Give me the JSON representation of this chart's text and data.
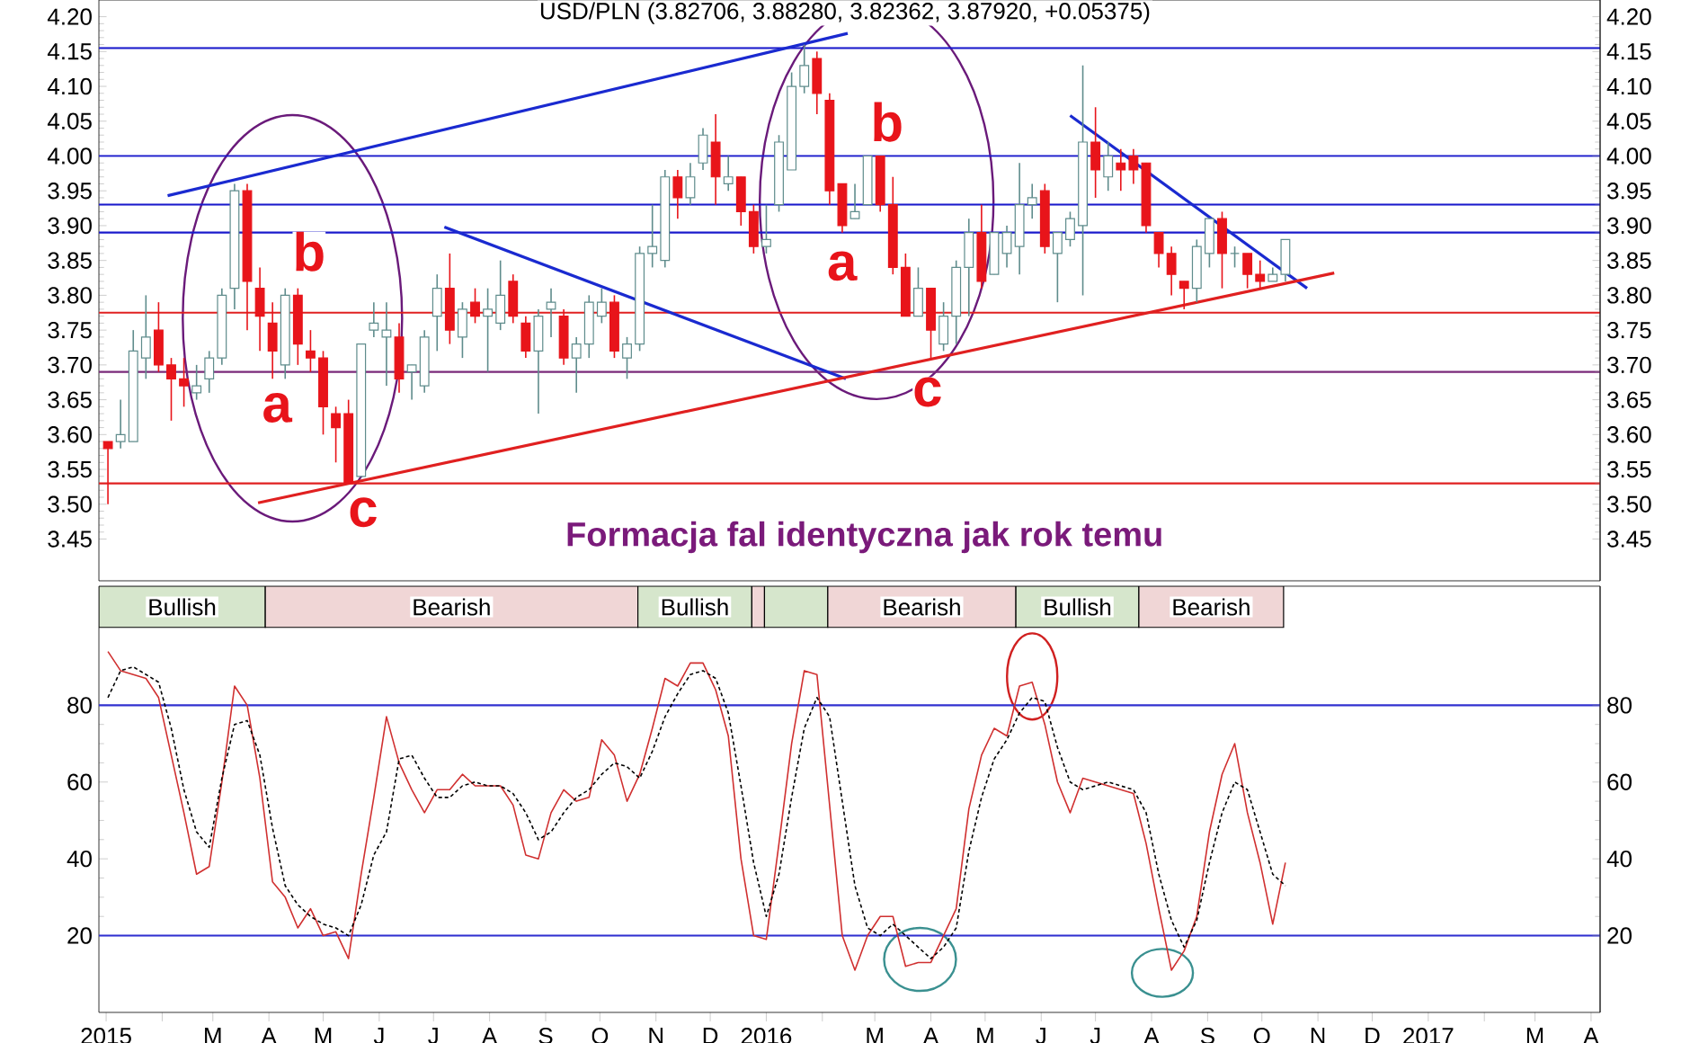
{
  "chart_data": [
    {
      "type": "candlestick",
      "title": "USD/PLN (3.82706, 3.88280, 3.82362, 3.87920, +0.05375)",
      "x": [
        "2015-01-02",
        "2015-01-09",
        "2015-01-16",
        "2015-01-23",
        "2015-01-30",
        "2015-02-06",
        "2015-02-13",
        "2015-02-20",
        "2015-02-27",
        "2015-03-06",
        "2015-03-13",
        "2015-03-20",
        "2015-03-27",
        "2015-04-03",
        "2015-04-10",
        "2015-04-17",
        "2015-04-24",
        "2015-05-01",
        "2015-05-08",
        "2015-05-15",
        "2015-05-22",
        "2015-05-29",
        "2015-06-05",
        "2015-06-12",
        "2015-06-19",
        "2015-06-26",
        "2015-07-03",
        "2015-07-10",
        "2015-07-17",
        "2015-07-24",
        "2015-07-31",
        "2015-08-07",
        "2015-08-14",
        "2015-08-21",
        "2015-08-28",
        "2015-09-04",
        "2015-09-11",
        "2015-09-18",
        "2015-09-25",
        "2015-10-02",
        "2015-10-09",
        "2015-10-16",
        "2015-10-23",
        "2015-10-30",
        "2015-11-06",
        "2015-11-13",
        "2015-11-20",
        "2015-11-27",
        "2015-12-04",
        "2015-12-11",
        "2015-12-18",
        "2015-12-25",
        "2016-01-01",
        "2016-01-08",
        "2016-01-15",
        "2016-01-22",
        "2016-01-29",
        "2016-02-05",
        "2016-02-12",
        "2016-02-19",
        "2016-02-26",
        "2016-03-04",
        "2016-03-11",
        "2016-03-18",
        "2016-03-25",
        "2016-04-01",
        "2016-04-08",
        "2016-04-15",
        "2016-04-22",
        "2016-04-29",
        "2016-05-06",
        "2016-05-13",
        "2016-05-20",
        "2016-05-27",
        "2016-06-03",
        "2016-06-10",
        "2016-06-17",
        "2016-06-24",
        "2016-07-01",
        "2016-07-08",
        "2016-07-15",
        "2016-07-22",
        "2016-07-29",
        "2016-08-05",
        "2016-08-12",
        "2016-08-19",
        "2016-08-26",
        "2016-09-02",
        "2016-09-09",
        "2016-09-16",
        "2016-09-23",
        "2016-09-30",
        "2016-10-07",
        "2016-10-14"
      ],
      "ohlc": [
        [
          3.59,
          3.59,
          3.5,
          3.58
        ],
        [
          3.59,
          3.65,
          3.58,
          3.6
        ],
        [
          3.59,
          3.75,
          3.59,
          3.72
        ],
        [
          3.71,
          3.8,
          3.68,
          3.74
        ],
        [
          3.75,
          3.79,
          3.69,
          3.7
        ],
        [
          3.7,
          3.71,
          3.62,
          3.68
        ],
        [
          3.68,
          3.71,
          3.64,
          3.67
        ],
        [
          3.66,
          3.7,
          3.65,
          3.67
        ],
        [
          3.68,
          3.72,
          3.66,
          3.71
        ],
        [
          3.71,
          3.81,
          3.7,
          3.8
        ],
        [
          3.81,
          3.96,
          3.78,
          3.95
        ],
        [
          3.95,
          3.96,
          3.75,
          3.82
        ],
        [
          3.81,
          3.84,
          3.72,
          3.77
        ],
        [
          3.76,
          3.79,
          3.68,
          3.72
        ],
        [
          3.7,
          3.81,
          3.68,
          3.8
        ],
        [
          3.8,
          3.81,
          3.7,
          3.73
        ],
        [
          3.72,
          3.75,
          3.69,
          3.71
        ],
        [
          3.71,
          3.72,
          3.6,
          3.64
        ],
        [
          3.63,
          3.64,
          3.56,
          3.61
        ],
        [
          3.63,
          3.65,
          3.53,
          3.53
        ],
        [
          3.54,
          3.73,
          3.54,
          3.73
        ],
        [
          3.75,
          3.79,
          3.74,
          3.76
        ],
        [
          3.74,
          3.79,
          3.67,
          3.75
        ],
        [
          3.74,
          3.76,
          3.66,
          3.68
        ],
        [
          3.69,
          3.7,
          3.65,
          3.7
        ],
        [
          3.67,
          3.75,
          3.66,
          3.74
        ],
        [
          3.77,
          3.83,
          3.72,
          3.81
        ],
        [
          3.81,
          3.86,
          3.73,
          3.75
        ],
        [
          3.74,
          3.79,
          3.71,
          3.78
        ],
        [
          3.79,
          3.81,
          3.76,
          3.77
        ],
        [
          3.77,
          3.81,
          3.69,
          3.78
        ],
        [
          3.76,
          3.85,
          3.75,
          3.8
        ],
        [
          3.82,
          3.83,
          3.76,
          3.77
        ],
        [
          3.76,
          3.77,
          3.71,
          3.72
        ],
        [
          3.72,
          3.78,
          3.63,
          3.77
        ],
        [
          3.78,
          3.81,
          3.74,
          3.79
        ],
        [
          3.77,
          3.78,
          3.7,
          3.71
        ],
        [
          3.71,
          3.74,
          3.66,
          3.73
        ],
        [
          3.73,
          3.8,
          3.71,
          3.79
        ],
        [
          3.77,
          3.81,
          3.76,
          3.79
        ],
        [
          3.79,
          3.8,
          3.71,
          3.72
        ],
        [
          3.71,
          3.74,
          3.68,
          3.73
        ],
        [
          3.73,
          3.87,
          3.72,
          3.86
        ],
        [
          3.86,
          3.93,
          3.84,
          3.87
        ],
        [
          3.85,
          3.98,
          3.84,
          3.97
        ],
        [
          3.97,
          3.98,
          3.91,
          3.94
        ],
        [
          3.94,
          3.99,
          3.93,
          3.97
        ],
        [
          3.99,
          4.04,
          3.98,
          4.03
        ],
        [
          4.02,
          4.06,
          3.93,
          3.97
        ],
        [
          3.96,
          4.0,
          3.95,
          3.97
        ],
        [
          3.97,
          3.97,
          3.9,
          3.92
        ],
        [
          3.92,
          3.93,
          3.86,
          3.87
        ],
        [
          3.87,
          3.93,
          3.86,
          3.88
        ],
        [
          3.93,
          4.03,
          3.92,
          4.02
        ],
        [
          3.98,
          4.12,
          3.98,
          4.1
        ],
        [
          4.1,
          4.16,
          4.09,
          4.13
        ],
        [
          4.14,
          4.15,
          4.06,
          4.09
        ],
        [
          4.08,
          4.09,
          3.93,
          3.95
        ],
        [
          3.96,
          3.96,
          3.89,
          3.9
        ],
        [
          3.91,
          3.96,
          3.91,
          3.92
        ],
        [
          3.93,
          4.0,
          3.93,
          4.0
        ],
        [
          4.0,
          4.0,
          3.92,
          3.93
        ],
        [
          3.93,
          3.97,
          3.83,
          3.84
        ],
        [
          3.84,
          3.86,
          3.77,
          3.77
        ],
        [
          3.77,
          3.84,
          3.77,
          3.81
        ],
        [
          3.81,
          3.81,
          3.71,
          3.75
        ],
        [
          3.73,
          3.79,
          3.72,
          3.77
        ],
        [
          3.77,
          3.85,
          3.73,
          3.84
        ],
        [
          3.84,
          3.91,
          3.77,
          3.89
        ],
        [
          3.89,
          3.93,
          3.81,
          3.82
        ],
        [
          3.83,
          3.89,
          3.83,
          3.89
        ],
        [
          3.86,
          3.9,
          3.84,
          3.89
        ],
        [
          3.87,
          3.99,
          3.83,
          3.93
        ],
        [
          3.93,
          3.96,
          3.91,
          3.94
        ],
        [
          3.95,
          3.96,
          3.86,
          3.87
        ],
        [
          3.86,
          3.89,
          3.79,
          3.89
        ],
        [
          3.88,
          3.92,
          3.87,
          3.91
        ],
        [
          3.9,
          4.13,
          3.8,
          4.02
        ],
        [
          4.02,
          4.07,
          3.94,
          3.98
        ],
        [
          3.97,
          4.02,
          3.95,
          4.0
        ],
        [
          3.99,
          4.01,
          3.95,
          3.98
        ],
        [
          4.0,
          4.01,
          3.96,
          3.98
        ],
        [
          3.99,
          3.99,
          3.89,
          3.9
        ],
        [
          3.89,
          3.89,
          3.84,
          3.86
        ],
        [
          3.86,
          3.87,
          3.8,
          3.83
        ],
        [
          3.82,
          3.82,
          3.78,
          3.81
        ],
        [
          3.81,
          3.88,
          3.79,
          3.87
        ],
        [
          3.86,
          3.91,
          3.84,
          3.91
        ],
        [
          3.91,
          3.92,
          3.81,
          3.86
        ],
        [
          3.86,
          3.87,
          3.84,
          3.86
        ],
        [
          3.86,
          3.86,
          3.81,
          3.83
        ],
        [
          3.83,
          3.85,
          3.81,
          3.82
        ],
        [
          3.82,
          3.84,
          3.82,
          3.83
        ],
        [
          3.83,
          3.88,
          3.82,
          3.88
        ]
      ],
      "xlim": [
        "2014-12-28",
        "2017-04-06"
      ],
      "ylim": [
        3.39,
        4.224
      ],
      "yticks": [
        {
          "value": 3.45,
          "label": "3.45"
        },
        {
          "value": 3.5,
          "label": "3.50"
        },
        {
          "value": 3.55,
          "label": "3.55"
        },
        {
          "value": 3.6,
          "label": "3.60"
        },
        {
          "value": 3.65,
          "label": "3.65"
        },
        {
          "value": 3.7,
          "label": "3.70"
        },
        {
          "value": 3.75,
          "label": "3.75"
        },
        {
          "value": 3.8,
          "label": "3.80"
        },
        {
          "value": 3.85,
          "label": "3.85"
        },
        {
          "value": 3.9,
          "label": "3.90"
        },
        {
          "value": 3.95,
          "label": "3.95"
        },
        {
          "value": 4.0,
          "label": "4.00"
        },
        {
          "value": 4.05,
          "label": "4.05"
        },
        {
          "value": 4.1,
          "label": "4.10"
        },
        {
          "value": 4.15,
          "label": "4.15"
        },
        {
          "value": 4.2,
          "label": "4.20"
        }
      ],
      "y2lim": [
        3.39,
        4.224
      ],
      "y2ticks": [
        {
          "value": 3.45,
          "label": "3.45"
        },
        {
          "value": 3.5,
          "label": "3.50"
        },
        {
          "value": 3.55,
          "label": "3.55"
        },
        {
          "value": 3.6,
          "label": "3.60"
        },
        {
          "value": 3.65,
          "label": "3.65"
        },
        {
          "value": 3.7,
          "label": "3.70"
        },
        {
          "value": 3.75,
          "label": "3.75"
        },
        {
          "value": 3.8,
          "label": "3.80"
        },
        {
          "value": 3.85,
          "label": "3.85"
        },
        {
          "value": 3.9,
          "label": "3.90"
        },
        {
          "value": 3.95,
          "label": "3.95"
        },
        {
          "value": 4.0,
          "label": "4.00"
        },
        {
          "value": 4.05,
          "label": "4.05"
        },
        {
          "value": 4.1,
          "label": "4.10"
        },
        {
          "value": 4.15,
          "label": "4.15"
        },
        {
          "value": 4.2,
          "label": "4.20"
        }
      ],
      "tick_labels": "y",
      "ref_lines": [
        {
          "axis": "y",
          "value": 4.155,
          "color": "#1a1acc"
        },
        {
          "axis": "y",
          "value": 4.0,
          "color": "#1a1acc"
        },
        {
          "axis": "y",
          "value": 3.93,
          "color": "#1a1acc"
        },
        {
          "axis": "y",
          "value": 3.89,
          "color": "#1a1acc"
        },
        {
          "axis": "y",
          "value": 3.775,
          "color": "#e02020"
        },
        {
          "axis": "y",
          "value": 3.69,
          "color": "#7a2a7a"
        },
        {
          "axis": "y",
          "value": 3.53,
          "color": "#e02020"
        }
      ],
      "series": [
        {
          "type": "line",
          "color": "#1a2ad0",
          "x": [
            "2015-02-04",
            "2016-02-15"
          ],
          "values": [
            3.943,
            4.176
          ]
        },
        {
          "type": "line",
          "color": "#1a2ad0",
          "x": [
            "2015-07-07",
            "2016-02-14"
          ],
          "values": [
            3.898,
            3.68
          ]
        },
        {
          "type": "line",
          "color": "#1a2ad0",
          "x": [
            "2016-06-17",
            "2016-10-26"
          ],
          "values": [
            4.058,
            3.81
          ]
        },
        {
          "type": "line",
          "color": "#e02020",
          "x": [
            "2015-03-26",
            "2016-11-10"
          ],
          "values": [
            3.502,
            3.832
          ]
        }
      ],
      "annotations": [
        "a",
        "b",
        "c",
        "a",
        "b",
        "c",
        "Formacja fal identyczna jak rok temu"
      ]
    },
    {
      "type": "line",
      "bands": [
        {
          "axis": "x",
          "from": "2014-12-28",
          "to": "2015-03-30",
          "label": "Bullish",
          "color": "#d6e6cc"
        },
        {
          "axis": "x",
          "from": "2015-03-30",
          "to": "2015-10-22",
          "label": "Bearish",
          "color": "#f0d6d6"
        },
        {
          "axis": "x",
          "from": "2015-10-22",
          "to": "2015-12-24",
          "label": "Bullish",
          "color": "#d6e6cc"
        },
        {
          "axis": "x",
          "from": "2015-12-24",
          "to": "2015-12-31",
          "color": "#f0d6d6"
        },
        {
          "axis": "x",
          "from": "2015-12-31",
          "to": "2016-02-04",
          "color": "#d6e6cc"
        },
        {
          "axis": "x",
          "from": "2016-02-04",
          "to": "2016-05-18",
          "label": "Bearish",
          "color": "#f0d6d6"
        },
        {
          "axis": "x",
          "from": "2016-05-18",
          "to": "2016-07-25",
          "label": "Bullish",
          "color": "#d6e6cc"
        },
        {
          "axis": "x",
          "from": "2016-07-25",
          "to": "2016-10-13",
          "label": "Bearish",
          "color": "#f0d6d6"
        }
      ],
      "x": [
        "2015-01-02",
        "2015-01-09",
        "2015-01-16",
        "2015-01-23",
        "2015-01-30",
        "2015-02-06",
        "2015-02-13",
        "2015-02-20",
        "2015-02-27",
        "2015-03-06",
        "2015-03-13",
        "2015-03-20",
        "2015-03-27",
        "2015-04-03",
        "2015-04-10",
        "2015-04-17",
        "2015-04-24",
        "2015-05-01",
        "2015-05-08",
        "2015-05-15",
        "2015-05-22",
        "2015-05-29",
        "2015-06-05",
        "2015-06-12",
        "2015-06-19",
        "2015-06-26",
        "2015-07-03",
        "2015-07-10",
        "2015-07-17",
        "2015-07-24",
        "2015-07-31",
        "2015-08-07",
        "2015-08-14",
        "2015-08-21",
        "2015-08-28",
        "2015-09-04",
        "2015-09-11",
        "2015-09-18",
        "2015-09-25",
        "2015-10-02",
        "2015-10-09",
        "2015-10-16",
        "2015-10-23",
        "2015-10-30",
        "2015-11-06",
        "2015-11-13",
        "2015-11-20",
        "2015-11-27",
        "2015-12-04",
        "2015-12-11",
        "2015-12-18",
        "2015-12-25",
        "2016-01-01",
        "2016-01-08",
        "2016-01-15",
        "2016-01-22",
        "2016-01-29",
        "2016-02-05",
        "2016-02-12",
        "2016-02-19",
        "2016-02-26",
        "2016-03-04",
        "2016-03-11",
        "2016-03-18",
        "2016-03-25",
        "2016-04-01",
        "2016-04-08",
        "2016-04-15",
        "2016-04-22",
        "2016-04-29",
        "2016-05-06",
        "2016-05-13",
        "2016-05-20",
        "2016-05-27",
        "2016-06-03",
        "2016-06-10",
        "2016-06-17",
        "2016-06-24",
        "2016-07-01",
        "2016-07-08",
        "2016-07-15",
        "2016-07-22",
        "2016-07-29",
        "2016-08-05",
        "2016-08-12",
        "2016-08-19",
        "2016-08-26",
        "2016-09-02",
        "2016-09-09",
        "2016-09-16",
        "2016-09-23",
        "2016-09-30",
        "2016-10-07",
        "2016-10-14"
      ],
      "xlim": [
        "2014-12-28",
        "2017-04-06"
      ],
      "ylim": [
        0,
        111
      ],
      "yticks": [
        20,
        40,
        60,
        80
      ],
      "y2lim": [
        0,
        111
      ],
      "y2ticks": [
        20,
        40,
        60,
        80
      ],
      "xticks": [
        {
          "value": "2015-01-01",
          "label": "2015"
        },
        {
          "value": "2015-02-01",
          "label": null
        },
        {
          "value": "2015-03-01",
          "label": "M"
        },
        {
          "value": "2015-04-01",
          "label": "A"
        },
        {
          "value": "2015-05-01",
          "label": "M"
        },
        {
          "value": "2015-06-01",
          "label": "J"
        },
        {
          "value": "2015-07-01",
          "label": "J"
        },
        {
          "value": "2015-08-01",
          "label": "A"
        },
        {
          "value": "2015-09-01",
          "label": "S"
        },
        {
          "value": "2015-10-01",
          "label": "O"
        },
        {
          "value": "2015-11-01",
          "label": "N"
        },
        {
          "value": "2015-12-01",
          "label": "D"
        },
        {
          "value": "2016-01-01",
          "label": "2016"
        },
        {
          "value": "2016-02-01",
          "label": null
        },
        {
          "value": "2016-03-01",
          "label": "M"
        },
        {
          "value": "2016-04-01",
          "label": "A"
        },
        {
          "value": "2016-05-01",
          "label": "M"
        },
        {
          "value": "2016-06-01",
          "label": "J"
        },
        {
          "value": "2016-07-01",
          "label": "J"
        },
        {
          "value": "2016-08-01",
          "label": "A"
        },
        {
          "value": "2016-09-01",
          "label": "S"
        },
        {
          "value": "2016-10-01",
          "label": "O"
        },
        {
          "value": "2016-11-01",
          "label": "N"
        },
        {
          "value": "2016-12-01",
          "label": "D"
        },
        {
          "value": "2017-01-01",
          "label": "2017"
        },
        {
          "value": "2017-02-01",
          "label": null
        },
        {
          "value": "2017-03-01",
          "label": "M"
        },
        {
          "value": "2017-04-01",
          "label": "A"
        }
      ],
      "ref_lines": [
        {
          "axis": "y",
          "value": 80,
          "color": "#3030d0"
        },
        {
          "axis": "y",
          "value": 20,
          "color": "#3030d0"
        }
      ],
      "series": [
        {
          "color": "#d03030",
          "values": [
            94,
            89,
            88,
            87,
            82,
            67,
            52,
            36,
            38,
            60,
            85,
            80,
            61,
            34,
            30,
            22,
            27,
            20,
            21,
            14,
            36,
            56,
            77,
            65,
            58,
            52,
            58,
            58,
            62,
            59,
            59,
            59,
            54,
            41,
            40,
            52,
            58,
            55,
            56,
            71,
            67,
            55,
            62,
            74,
            87,
            85,
            91,
            91,
            84,
            72,
            40,
            20,
            19,
            44,
            70,
            89,
            88,
            54,
            20,
            11,
            20,
            25,
            25,
            12,
            13,
            13,
            20,
            27,
            53,
            67,
            74,
            72,
            85,
            86,
            75,
            60,
            52,
            61,
            60,
            59,
            58,
            57,
            44,
            27,
            11,
            16,
            25,
            47,
            62,
            70,
            52,
            39,
            23,
            39
          ]
        },
        {
          "color": "#000000",
          "line_style": "dashed",
          "values": [
            82,
            89,
            90,
            88,
            86,
            74,
            58,
            47,
            43,
            61,
            75,
            76,
            67,
            48,
            33,
            28,
            25,
            23,
            22,
            20,
            28,
            41,
            47,
            66,
            67,
            61,
            56,
            56,
            59,
            60,
            59,
            59,
            57,
            52,
            45,
            47,
            52,
            56,
            58,
            62,
            65,
            64,
            61,
            68,
            77,
            83,
            88,
            89,
            87,
            78,
            59,
            39,
            25,
            36,
            56,
            74,
            82,
            77,
            55,
            33,
            22,
            20,
            23,
            20,
            17,
            14,
            17,
            22,
            42,
            56,
            66,
            71,
            78,
            82,
            81,
            69,
            60,
            58,
            59,
            60,
            59,
            58,
            52,
            36,
            24,
            17,
            24,
            39,
            52,
            60,
            58,
            47,
            36,
            33
          ]
        }
      ]
    }
  ]
}
